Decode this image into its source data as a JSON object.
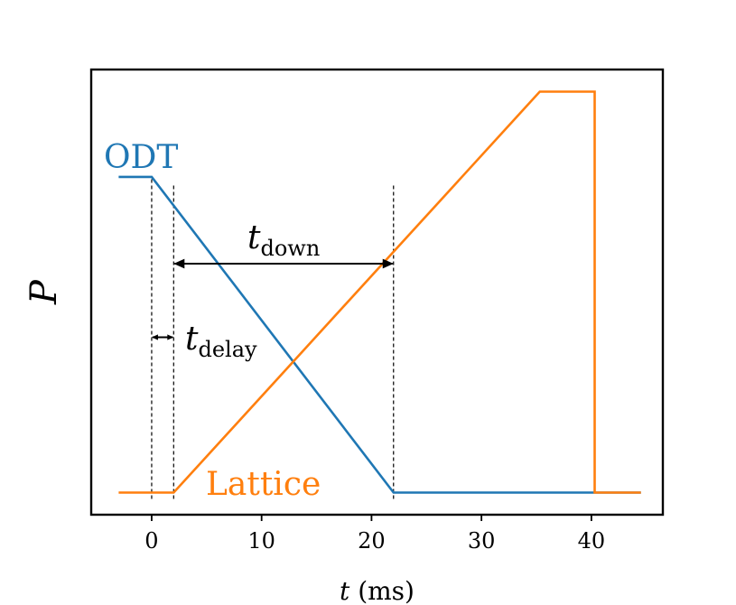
{
  "chart_data": {
    "type": "line",
    "xlabel": {
      "var": "t",
      "unit": "(ms)"
    },
    "ylabel": "P",
    "xlim": [
      -5.5,
      46.5
    ],
    "ylim": [
      -0.07,
      1.34
    ],
    "xticks": [
      0,
      10,
      20,
      30,
      40
    ],
    "xtick_labels": [
      "0",
      "10",
      "20",
      "30",
      "40"
    ],
    "yticks": [],
    "grid": false,
    "legend": "none",
    "series": [
      {
        "name": "ODT",
        "color": "#1f77b4",
        "x": [
          -3,
          0,
          22,
          44.5
        ],
        "y": [
          1.0,
          1.0,
          0.0,
          0.0
        ]
      },
      {
        "name": "Lattice",
        "color": "#ff7f0e",
        "x": [
          -3,
          2,
          35.3,
          40.3,
          40.3,
          44.5
        ],
        "y": [
          0.0,
          0.0,
          1.27,
          1.27,
          0.0,
          0.0
        ]
      }
    ],
    "vlines": [
      {
        "x": 0,
        "y": [
          -0.02,
          1.0
        ],
        "style": "dashed"
      },
      {
        "x": 2,
        "y": [
          -0.02,
          0.98
        ],
        "style": "dashed"
      },
      {
        "x": 22,
        "y": [
          -0.02,
          0.98
        ],
        "style": "dashed"
      }
    ],
    "annotations": [
      {
        "name": "t_down",
        "main": "t",
        "sub": "down",
        "from_x": 2,
        "to_x": 22,
        "y": 0.725,
        "label_x": 12.5,
        "label_y": 0.78
      },
      {
        "name": "t_delay",
        "main": "t",
        "sub": "delay",
        "from_x": 0,
        "to_x": 2,
        "y": 0.492,
        "label_x": 3.3,
        "label_y": 0.47
      }
    ]
  }
}
